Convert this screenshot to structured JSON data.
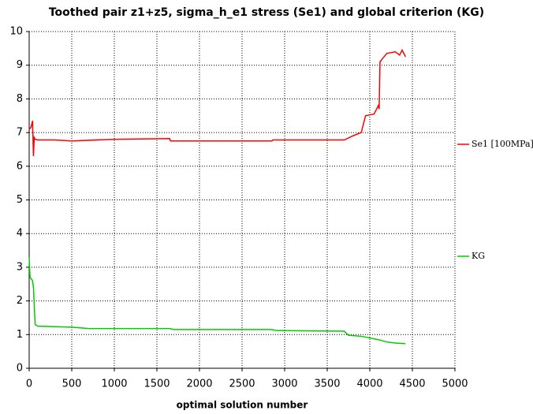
{
  "chart_data": {
    "type": "line",
    "title": "Toothed pair z1+z5, sigma_h_e1 stress (Se1) and global criterion (KG)",
    "x_label": "optimal solution number",
    "xlim": [
      0,
      5000
    ],
    "xticks": [
      0,
      500,
      1000,
      1500,
      2000,
      2500,
      3000,
      3500,
      4000,
      4500,
      5000
    ],
    "ylim": [
      0,
      10
    ],
    "yticks": [
      0,
      1,
      2,
      3,
      4,
      5,
      6,
      7,
      8,
      9,
      10
    ],
    "grid": true,
    "series": [
      {
        "name": "Se1 [100MPa]",
        "color": "#ff0000",
        "x": [
          0,
          20,
          40,
          50,
          60,
          70,
          100,
          300,
          500,
          1000,
          1650,
          1660,
          2850,
          2860,
          3700,
          3800,
          3900,
          3950,
          4050,
          4100,
          4110,
          4120,
          4150,
          4200,
          4300,
          4350,
          4380,
          4420
        ],
        "values": [
          7.1,
          7.15,
          7.35,
          6.3,
          6.85,
          6.8,
          6.78,
          6.78,
          6.75,
          6.8,
          6.82,
          6.75,
          6.75,
          6.78,
          6.78,
          6.9,
          7.0,
          7.5,
          7.55,
          7.8,
          7.7,
          9.1,
          9.2,
          9.35,
          9.4,
          9.3,
          9.45,
          9.25
        ]
      },
      {
        "name": "KG",
        "color": "#00cc00",
        "x": [
          0,
          10,
          40,
          50,
          70,
          100,
          500,
          700,
          1650,
          1700,
          2850,
          2900,
          3700,
          3750,
          3900,
          4000,
          4100,
          4200,
          4300,
          4420
        ],
        "values": [
          3.3,
          2.7,
          2.6,
          2.4,
          1.3,
          1.25,
          1.22,
          1.18,
          1.18,
          1.15,
          1.15,
          1.12,
          1.1,
          0.98,
          0.95,
          0.9,
          0.85,
          0.78,
          0.75,
          0.73
        ]
      }
    ]
  }
}
